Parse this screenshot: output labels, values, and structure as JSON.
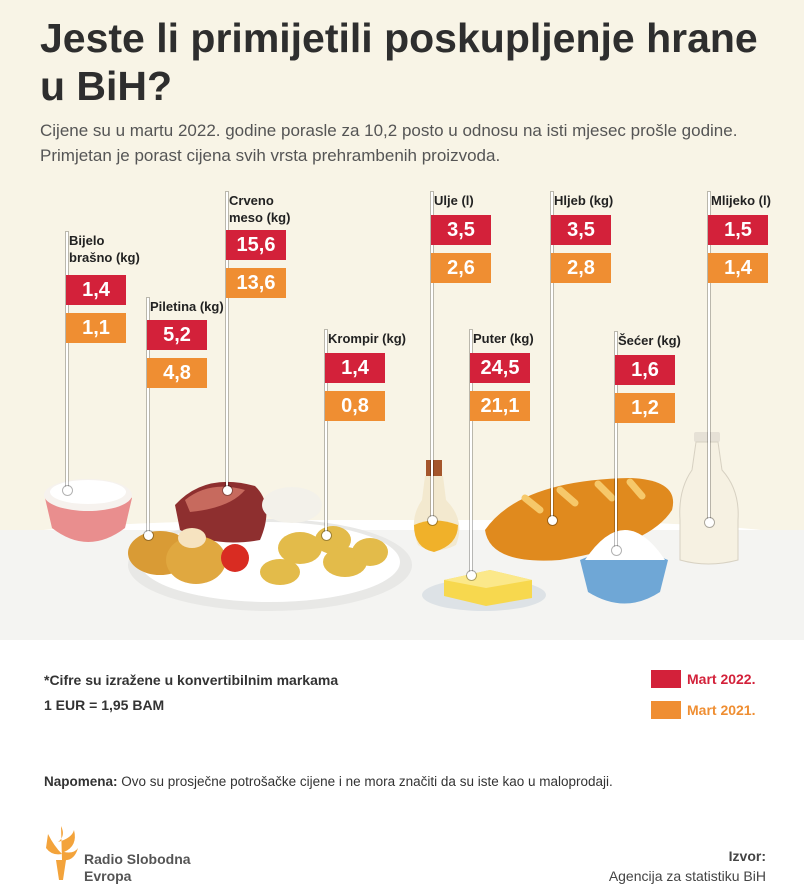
{
  "title": "Jeste li primijetili poskupljenje hrane u BiH?",
  "subtitle": "Cijene su u martu 2022. godine porasle za 10,2 posto u odnosu na isti mjesec prošle godine. Primjetan je porast cijena svih vrsta prehrambenih proizvoda.",
  "colors": {
    "mart2022": "#d3213a",
    "mart2021": "#ef8e32"
  },
  "chart_data": {
    "type": "bar",
    "categories": [
      "Bijelo brašno (kg)",
      "Piletina (kg)",
      "Crveno meso (kg)",
      "Krompir (kg)",
      "Ulje (l)",
      "Puter (kg)",
      "Hljeb (kg)",
      "Šećer (kg)",
      "Mlijeko (l)"
    ],
    "series": [
      {
        "name": "Mart 2022.",
        "values": [
          "1,4",
          "5,2",
          "15,6",
          "1,4",
          "3,5",
          "24,5",
          "3,5",
          "1,6",
          "1,5"
        ]
      },
      {
        "name": "Mart 2021.",
        "values": [
          "1,1",
          "4,8",
          "13,6",
          "0,8",
          "2,6",
          "21,1",
          "2,8",
          "1,2",
          "1,4"
        ]
      }
    ],
    "legend": [
      "Mart 2022.",
      "Mart 2021."
    ],
    "legend_position": "bottom-right"
  },
  "notes": {
    "currency": "*Cifre su izražene u konvertibilnim markama",
    "rate": "1 EUR = 1,95 BAM",
    "napomena_label": "Napomena:",
    "napomena_text": " Ovo su prosječne potrošačke cijene i ne mora značiti da su iste kao u maloprodaji."
  },
  "logo": {
    "line1": "Radio Slobodna",
    "line2": "Evropa"
  },
  "source": {
    "label": "Izvor:",
    "value": "Agencija za statistiku BiH"
  }
}
